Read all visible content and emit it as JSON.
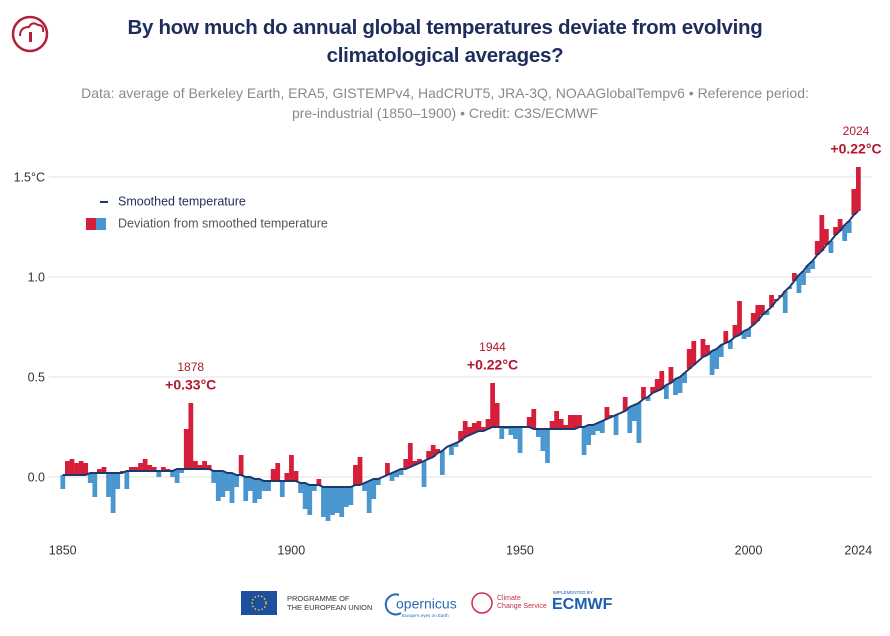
{
  "chart_data": {
    "type": "deviation-bars",
    "title": "By how much do annual global temperatures deviate from evolving climatological averages?",
    "subtitle": "Data: average of Berkeley Earth, ERA5, GISTEMPv4, HadCRUT5, JRA-3Q, NOAAGlobalTempv6 • Reference period: pre-industrial (1850–1900) • Credit: C3S/ECMWF",
    "x": [
      1850,
      1851,
      1852,
      1853,
      1854,
      1855,
      1856,
      1857,
      1858,
      1859,
      1860,
      1861,
      1862,
      1863,
      1864,
      1865,
      1866,
      1867,
      1868,
      1869,
      1870,
      1871,
      1872,
      1873,
      1874,
      1875,
      1876,
      1877,
      1878,
      1879,
      1880,
      1881,
      1882,
      1883,
      1884,
      1885,
      1886,
      1887,
      1888,
      1889,
      1890,
      1891,
      1892,
      1893,
      1894,
      1895,
      1896,
      1897,
      1898,
      1899,
      1900,
      1901,
      1902,
      1903,
      1904,
      1905,
      1906,
      1907,
      1908,
      1909,
      1910,
      1911,
      1912,
      1913,
      1914,
      1915,
      1916,
      1917,
      1918,
      1919,
      1920,
      1921,
      1922,
      1923,
      1924,
      1925,
      1926,
      1927,
      1928,
      1929,
      1930,
      1931,
      1932,
      1933,
      1934,
      1935,
      1936,
      1937,
      1938,
      1939,
      1940,
      1941,
      1942,
      1943,
      1944,
      1945,
      1946,
      1947,
      1948,
      1949,
      1950,
      1951,
      1952,
      1953,
      1954,
      1955,
      1956,
      1957,
      1958,
      1959,
      1960,
      1961,
      1962,
      1963,
      1964,
      1965,
      1966,
      1967,
      1968,
      1969,
      1970,
      1971,
      1972,
      1973,
      1974,
      1975,
      1976,
      1977,
      1978,
      1979,
      1980,
      1981,
      1982,
      1983,
      1984,
      1985,
      1986,
      1987,
      1988,
      1989,
      1990,
      1991,
      1992,
      1993,
      1994,
      1995,
      1996,
      1997,
      1998,
      1999,
      2000,
      2001,
      2002,
      2003,
      2004,
      2005,
      2006,
      2007,
      2008,
      2009,
      2010,
      2011,
      2012,
      2013,
      2014,
      2015,
      2016,
      2017,
      2018,
      2019,
      2020,
      2021,
      2022,
      2023,
      2024
    ],
    "series": [
      {
        "name": "Smoothed temperature",
        "color": "#1b3a6b",
        "values": [
          0.01,
          0.01,
          0.01,
          0.01,
          0.01,
          0.01,
          0.02,
          0.02,
          0.02,
          0.02,
          0.02,
          0.02,
          0.02,
          0.02,
          0.03,
          0.03,
          0.03,
          0.03,
          0.03,
          0.03,
          0.03,
          0.03,
          0.03,
          0.03,
          0.03,
          0.04,
          0.04,
          0.04,
          0.04,
          0.04,
          0.04,
          0.04,
          0.04,
          0.03,
          0.03,
          0.03,
          0.02,
          0.02,
          0.01,
          0.01,
          0.0,
          0.0,
          -0.01,
          -0.01,
          -0.02,
          -0.02,
          -0.02,
          -0.02,
          -0.02,
          -0.02,
          -0.02,
          -0.02,
          -0.03,
          -0.03,
          -0.04,
          -0.04,
          -0.04,
          -0.05,
          -0.05,
          -0.05,
          -0.05,
          -0.05,
          -0.05,
          -0.05,
          -0.04,
          -0.04,
          -0.03,
          -0.02,
          -0.01,
          -0.01,
          0.0,
          0.01,
          0.02,
          0.03,
          0.04,
          0.04,
          0.05,
          0.06,
          0.07,
          0.08,
          0.09,
          0.1,
          0.12,
          0.13,
          0.15,
          0.16,
          0.17,
          0.18,
          0.2,
          0.21,
          0.22,
          0.23,
          0.23,
          0.24,
          0.25,
          0.25,
          0.25,
          0.25,
          0.25,
          0.25,
          0.25,
          0.25,
          0.25,
          0.24,
          0.24,
          0.24,
          0.24,
          0.24,
          0.24,
          0.24,
          0.24,
          0.24,
          0.24,
          0.25,
          0.25,
          0.26,
          0.26,
          0.27,
          0.28,
          0.29,
          0.3,
          0.31,
          0.32,
          0.33,
          0.35,
          0.36,
          0.37,
          0.39,
          0.4,
          0.42,
          0.43,
          0.44,
          0.46,
          0.47,
          0.49,
          0.5,
          0.52,
          0.54,
          0.56,
          0.58,
          0.6,
          0.61,
          0.63,
          0.64,
          0.66,
          0.67,
          0.68,
          0.7,
          0.71,
          0.73,
          0.74,
          0.76,
          0.78,
          0.81,
          0.83,
          0.85,
          0.88,
          0.9,
          0.93,
          0.95,
          0.98,
          1.01,
          1.03,
          1.06,
          1.08,
          1.11,
          1.13,
          1.16,
          1.18,
          1.21,
          1.23,
          1.26,
          1.28,
          1.31,
          1.33
        ]
      },
      {
        "name": "Deviation from smoothed temperature",
        "positive_color": "#d51e3a",
        "negative_color": "#4a97cf",
        "values": [
          -0.07,
          0.07,
          0.08,
          0.06,
          0.07,
          0.06,
          -0.05,
          -0.12,
          0.02,
          0.03,
          -0.12,
          -0.2,
          -0.08,
          0.01,
          -0.09,
          0.02,
          0.02,
          0.04,
          0.06,
          0.03,
          0.02,
          -0.03,
          0.02,
          0.01,
          -0.03,
          -0.07,
          -0.02,
          0.2,
          0.33,
          0.04,
          0.02,
          0.04,
          0.02,
          -0.06,
          -0.15,
          -0.13,
          -0.09,
          -0.15,
          -0.06,
          0.1,
          -0.12,
          -0.07,
          -0.12,
          -0.1,
          -0.05,
          -0.05,
          0.06,
          0.09,
          -0.08,
          0.04,
          0.13,
          0.05,
          -0.05,
          -0.13,
          -0.15,
          -0.03,
          0.03,
          -0.15,
          -0.17,
          -0.14,
          -0.13,
          -0.15,
          -0.1,
          -0.09,
          0.1,
          0.14,
          -0.04,
          -0.16,
          -0.1,
          -0.03,
          0.0,
          0.06,
          -0.04,
          -0.03,
          -0.03,
          0.05,
          0.12,
          0.02,
          0.02,
          -0.13,
          0.04,
          0.06,
          0.02,
          -0.12,
          0.0,
          -0.05,
          -0.02,
          0.05,
          0.08,
          0.04,
          0.05,
          0.05,
          0.02,
          0.05,
          0.22,
          0.12,
          -0.06,
          -0.01,
          -0.04,
          -0.06,
          -0.13,
          0.0,
          0.05,
          0.1,
          -0.04,
          -0.11,
          -0.17,
          0.04,
          0.09,
          0.05,
          0.02,
          0.07,
          0.07,
          0.06,
          -0.14,
          -0.1,
          -0.05,
          -0.04,
          -0.06,
          0.06,
          0.01,
          -0.1,
          0.0,
          0.07,
          -0.13,
          -0.08,
          -0.2,
          0.06,
          -0.02,
          0.03,
          0.06,
          0.09,
          -0.07,
          0.08,
          -0.08,
          -0.08,
          -0.05,
          0.1,
          0.12,
          0.0,
          0.09,
          0.05,
          -0.12,
          -0.1,
          -0.06,
          0.06,
          -0.04,
          0.06,
          0.17,
          -0.04,
          -0.04,
          0.06,
          0.08,
          0.05,
          -0.02,
          0.06,
          0.01,
          0.01,
          -0.11,
          -0.01,
          0.04,
          -0.09,
          -0.07,
          -0.04,
          -0.04,
          0.07,
          0.18,
          0.08,
          -0.06,
          0.04,
          0.06,
          -0.08,
          -0.06,
          0.13,
          0.22
        ]
      }
    ],
    "xlim": [
      1847,
      2027
    ],
    "xticks": [
      1850,
      1900,
      1950,
      2000,
      2024
    ],
    "ylim": [
      -0.35,
      1.65
    ],
    "yticks": [
      {
        "value": 0,
        "label": "0.0"
      },
      0.5,
      {
        "value": 1,
        "label": "1.0"
      },
      {
        "value": 1.5,
        "label": "1.5°C"
      }
    ],
    "grid": true,
    "annotations": [
      {
        "year": 1878,
        "text": "+0.33°C"
      },
      {
        "year": 1944,
        "text": "+0.22°C"
      },
      {
        "year": 2024,
        "text": "+0.22°C"
      }
    ]
  },
  "footer": {
    "eu": [
      "PROGRAMME OF",
      "THE EUROPEAN UNION"
    ],
    "copernicus": "opernicus",
    "copernicus_tagline": "Europe's eyes on Earth",
    "c3s": [
      "Climate",
      "Change Service"
    ],
    "ecmwf_note": "IMPLEMENTED BY",
    "ecmwf": "ECMWF"
  }
}
